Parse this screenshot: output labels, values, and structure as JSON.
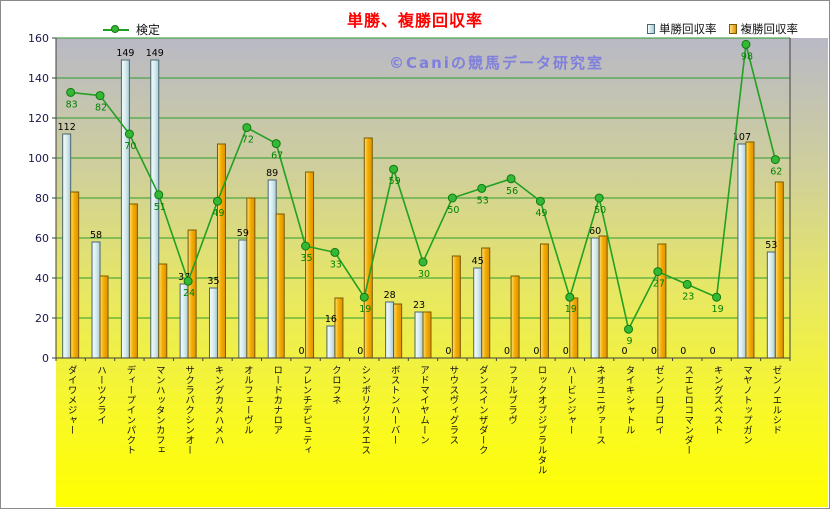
{
  "watermark": "©Caniの競馬データ研究室",
  "legend": {
    "kentei": "検定",
    "tansho": "単勝回収率",
    "fukusho": "複勝回収率"
  },
  "colors": {
    "title": "#FF0000",
    "watermark": "#7F7FDD",
    "grid": "#2E9B2E",
    "axis": "#404040",
    "y_tick_text": "#18184A",
    "tansho_fill_light": "#F4FBFC",
    "tansho_fill_mid": "#D9EDF0",
    "tansho_fill_dark": "#A8CCD4",
    "tansho_stroke": "#4A6670",
    "fukusho_fill_light": "#FFDF7F",
    "fukusho_fill_mid": "#F3AE00",
    "fukusho_fill_dark": "#E09000",
    "fukusho_stroke": "#7A5A00",
    "kentei_line": "#22A022",
    "kentei_marker_fill": "#35B835",
    "kentei_marker_stroke": "#0E7A0E",
    "kentei_label": "#008200",
    "bar_label": "#000000"
  },
  "chart_data": {
    "type": "combo-bar-line",
    "title": "単勝、複勝回収率",
    "xlabel": "",
    "ylabel": "",
    "grid": true,
    "legend_position": "top",
    "categories": [
      "ダイワメジャー",
      "ハーツクライ",
      "ディープインパクト",
      "マンハッタンカフェ",
      "サクラバクシンオー",
      "キングカメハメハ",
      "オルフェーヴル",
      "ロードカナロア",
      "フレンチデピュティ",
      "クロフネ",
      "シンボリクリスエス",
      "ボストンハーバー",
      "アドマイヤムーン",
      "サウスヴィグラス",
      "ダンスインザダーク",
      "ファルブラヴ",
      "ロックオブジブラルタル",
      "ハービンジャー",
      "ネオユニヴァース",
      "タイキシャトル",
      "ゼンノロブロイ",
      "スエヒロコマンダー",
      "キングズベスト",
      "マヤノトップガン",
      "ゼンノエルシド"
    ],
    "series": [
      {
        "name": "単勝回収率",
        "type": "bar",
        "show_labels": true,
        "values": [
          112,
          58,
          149,
          149,
          37,
          35,
          59,
          89,
          0,
          16,
          0,
          28,
          23,
          0,
          45,
          0,
          0,
          0,
          60,
          0,
          0,
          0,
          0,
          107,
          53
        ]
      },
      {
        "name": "複勝回収率",
        "type": "bar",
        "show_labels": false,
        "values": [
          83,
          41,
          77,
          47,
          64,
          107,
          80,
          72,
          93,
          30,
          110,
          27,
          23,
          51,
          55,
          41,
          57,
          30,
          61,
          0,
          57,
          0,
          0,
          108,
          88
        ]
      },
      {
        "name": "検定",
        "type": "line",
        "show_labels": true,
        "axis": "secondary",
        "values": [
          83,
          82,
          70,
          51,
          24,
          49,
          72,
          67,
          35,
          33,
          19,
          59,
          30,
          50,
          53,
          56,
          49,
          19,
          50,
          9,
          27,
          23,
          19,
          98,
          62
        ]
      }
    ],
    "y_axis": {
      "min": 0,
      "max": 160,
      "step": 20,
      "ticks": [
        0,
        20,
        40,
        60,
        80,
        100,
        120,
        140,
        160
      ]
    },
    "secondary_axis": {
      "min": 0,
      "max": 100,
      "hidden": true,
      "note": "検定 line is plotted on a hidden 0-100 scale spanning the same plot height"
    }
  }
}
